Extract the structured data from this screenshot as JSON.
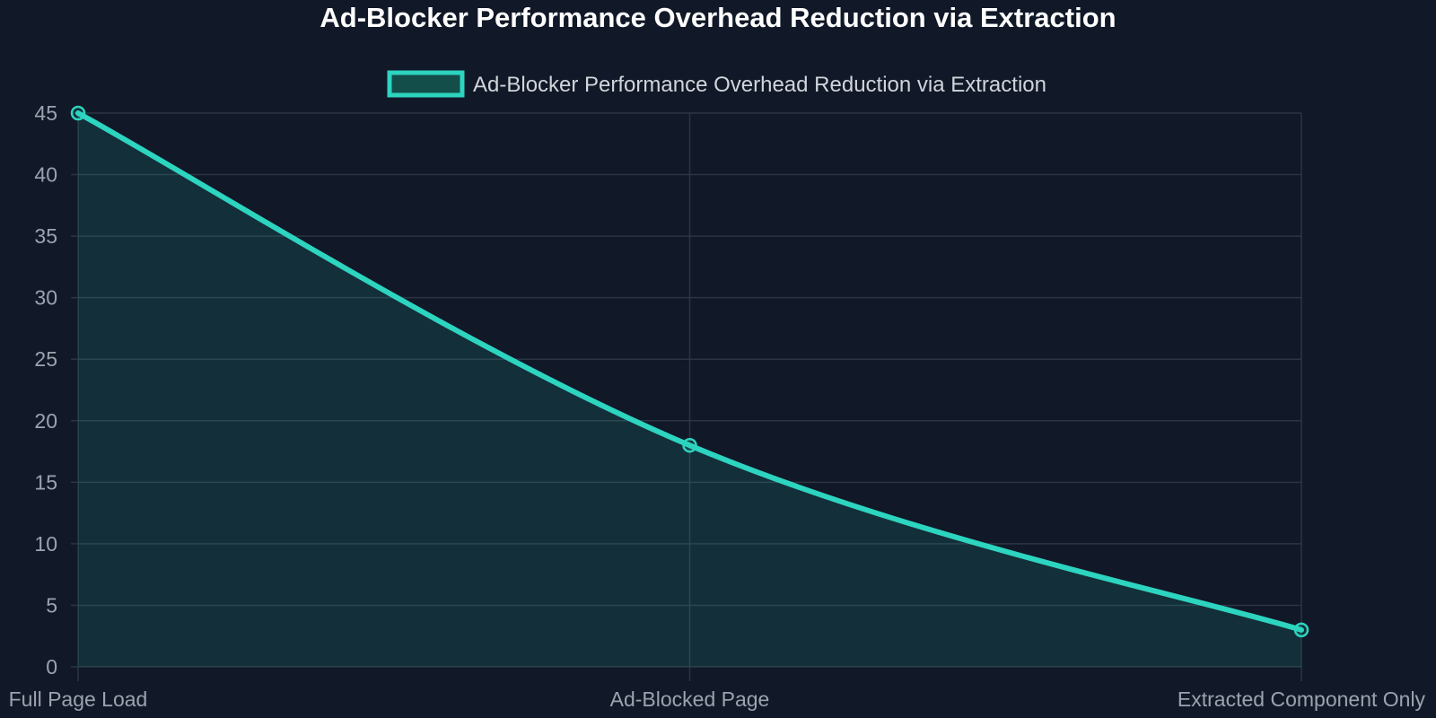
{
  "chart_data": {
    "type": "area",
    "title": "Ad-Blocker Performance Overhead Reduction via Extraction",
    "xlabel": "",
    "ylabel": "",
    "categories": [
      "Full Page Load",
      "Ad-Blocked Page",
      "Extracted Component Only"
    ],
    "series": [
      {
        "name": "Ad-Blocker Performance Overhead Reduction via Extraction",
        "values": [
          45,
          18,
          3
        ]
      }
    ],
    "ylim": [
      0,
      45
    ],
    "yticks": [
      0,
      5,
      10,
      15,
      20,
      25,
      30,
      35,
      40,
      45
    ],
    "grid": true,
    "legend_position": "top-center",
    "smooth": true
  },
  "colors": {
    "background": "#111827",
    "line": "#2dd4bf",
    "fill": "rgba(45, 212, 191, 0.12)",
    "grid": "#2b3544",
    "title": "#ffffff",
    "legend_text": "#d1d5db",
    "tick_text": "#9ca3af",
    "legend_box_fill": "#134e4a"
  }
}
